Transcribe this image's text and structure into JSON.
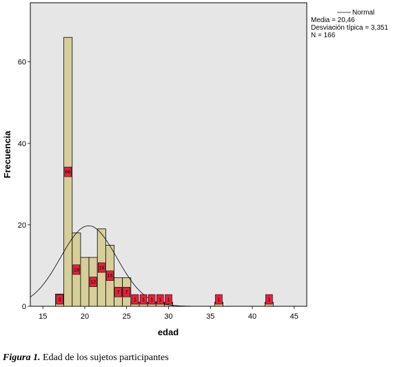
{
  "chart_data": {
    "type": "bar",
    "subtype": "histogram",
    "xlabel": "edad",
    "ylabel": "Frecuencia",
    "xlim": [
      13.5,
      46.5
    ],
    "ylim": [
      0,
      74.5
    ],
    "xticks": [
      15,
      20,
      25,
      30,
      35,
      40,
      45
    ],
    "yticks": [
      0,
      20,
      40,
      60
    ],
    "bin_width": 1,
    "bins": [
      {
        "x": 17,
        "value": 3,
        "label": "3"
      },
      {
        "x": 18,
        "value": 66,
        "label": "66"
      },
      {
        "x": 19,
        "value": 18,
        "label": "18"
      },
      {
        "x": 20,
        "value": 12,
        "label": ""
      },
      {
        "x": 21,
        "value": 12,
        "label": "12"
      },
      {
        "x": 22,
        "value": 19,
        "label": "19"
      },
      {
        "x": 23,
        "value": 15,
        "label": "15"
      },
      {
        "x": 24,
        "value": 7,
        "label": "7"
      },
      {
        "x": 25,
        "value": 7,
        "label": "7"
      },
      {
        "x": 26,
        "value": 1,
        "label": "1"
      },
      {
        "x": 27,
        "value": 1,
        "label": "1"
      },
      {
        "x": 28,
        "value": 1,
        "label": "1"
      },
      {
        "x": 29,
        "value": 1,
        "label": "1"
      },
      {
        "x": 30,
        "value": 1,
        "label": "1"
      },
      {
        "x": 36,
        "value": 1,
        "label": "1"
      },
      {
        "x": 42,
        "value": 1,
        "label": "1"
      }
    ],
    "normal_curve": {
      "mean": 20.46,
      "sd": 3.351,
      "n": 166
    },
    "legend": {
      "series_name": "Normal",
      "lines": [
        "Media = 20,46",
        "Desviación típica = 3,351",
        "N = 166"
      ],
      "position": "top-right-outside"
    },
    "colors": {
      "plot_background": "#e6e6e6",
      "bar_fill": "#d6cf9a",
      "bar_stroke": "#000000",
      "label_fill": "#e8203b",
      "curve": "#000000"
    },
    "grid": false
  },
  "caption": {
    "figure_label": "Figura 1.",
    "text": " Edad de los sujetos participantes"
  }
}
